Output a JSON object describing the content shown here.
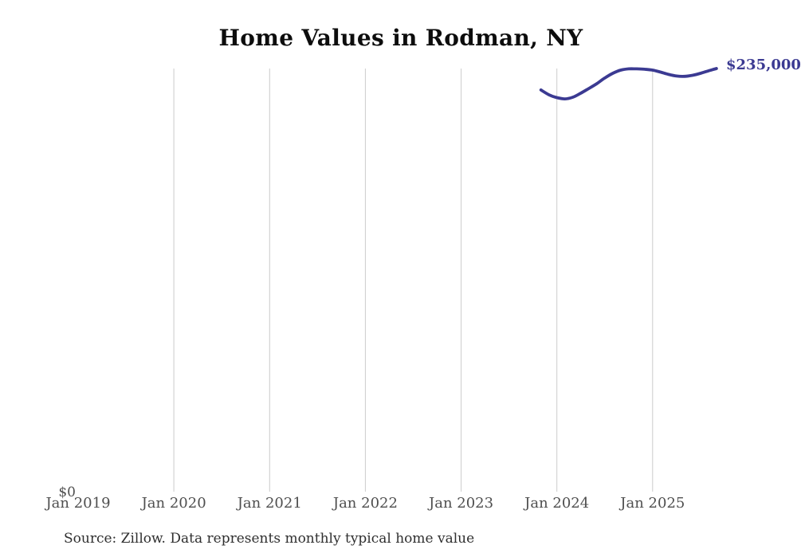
{
  "page": {
    "title": "Home Values in Rodman, NY",
    "source_note": "Source: Zillow. Data represents monthly typical home value"
  },
  "chart_data": {
    "type": "line",
    "title": "Home Values in Rodman, NY",
    "x": [
      "Nov 2023",
      "Dec 2023",
      "Jan 2024",
      "Feb 2024",
      "Mar 2024",
      "Apr 2024",
      "May 2024",
      "Jun 2024",
      "Jul 2024",
      "Aug 2024",
      "Sep 2024",
      "Oct 2024",
      "Nov 2024",
      "Dec 2024",
      "Jan 2025",
      "Feb 2025",
      "Mar 2025",
      "Apr 2025",
      "May 2025",
      "Jun 2025",
      "Jul 2025",
      "Aug 2025",
      "Sep 2025"
    ],
    "values": [
      223000,
      220300,
      218700,
      218000,
      218900,
      221200,
      223800,
      226500,
      229700,
      232300,
      234100,
      234800,
      234800,
      234600,
      234100,
      233000,
      231700,
      230800,
      230600,
      231200,
      232300,
      233700,
      235000
    ],
    "xlabel": "",
    "ylabel": "",
    "ylim": [
      0,
      235000
    ],
    "x_tick_labels": [
      "Jan 2019",
      "Jan 2020",
      "Jan 2021",
      "Jan 2022",
      "Jan 2023",
      "Jan 2024",
      "Jan 2025"
    ],
    "y_tick_labels": [
      "$0"
    ],
    "y_zero_label": "$0",
    "end_label": "$235,000",
    "grid": "vertical-gridlines-only",
    "legend": "none",
    "colors": {
      "line": "#3b3a92",
      "end_label": "#3b3a92",
      "gridline": "#cccccc",
      "tick_label": "#4f4f4f",
      "title": "#0d0d0d",
      "source": "#2f2f2f",
      "background": "#ffffff"
    }
  }
}
